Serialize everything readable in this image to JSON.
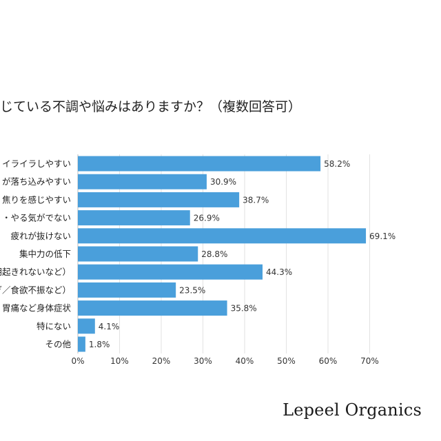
{
  "chart_data": {
    "type": "bar",
    "orientation": "horizontal",
    "title": "じている不調や悩みはありますか？（複数回答可）",
    "categories": [
      "イライラしやすい",
      "が落ち込みやすい",
      "焦りを感じやすい",
      "・やる気がでない",
      "疲れが抜けない",
      "集中力の低下",
      "朝起きれないなど）",
      "ぎ／食欲不振など）",
      "胃痛など身体症状",
      "特にない",
      "その他"
    ],
    "values": [
      58.2,
      30.9,
      38.7,
      26.9,
      69.1,
      28.8,
      44.3,
      23.5,
      35.8,
      4.1,
      1.8
    ],
    "value_labels": [
      "58.2%",
      "30.9%",
      "38.7%",
      "26.9%",
      "69.1%",
      "28.8%",
      "44.3%",
      "23.5%",
      "35.8%",
      "4.1%",
      "1.8%"
    ],
    "x_ticks": [
      "0%",
      "10%",
      "20%",
      "30%",
      "40%",
      "50%",
      "60%",
      "70%"
    ],
    "xlim": [
      0,
      70
    ],
    "grid": true,
    "bar_color": "#4a9fdb"
  },
  "brand": "Lepeel Organics"
}
